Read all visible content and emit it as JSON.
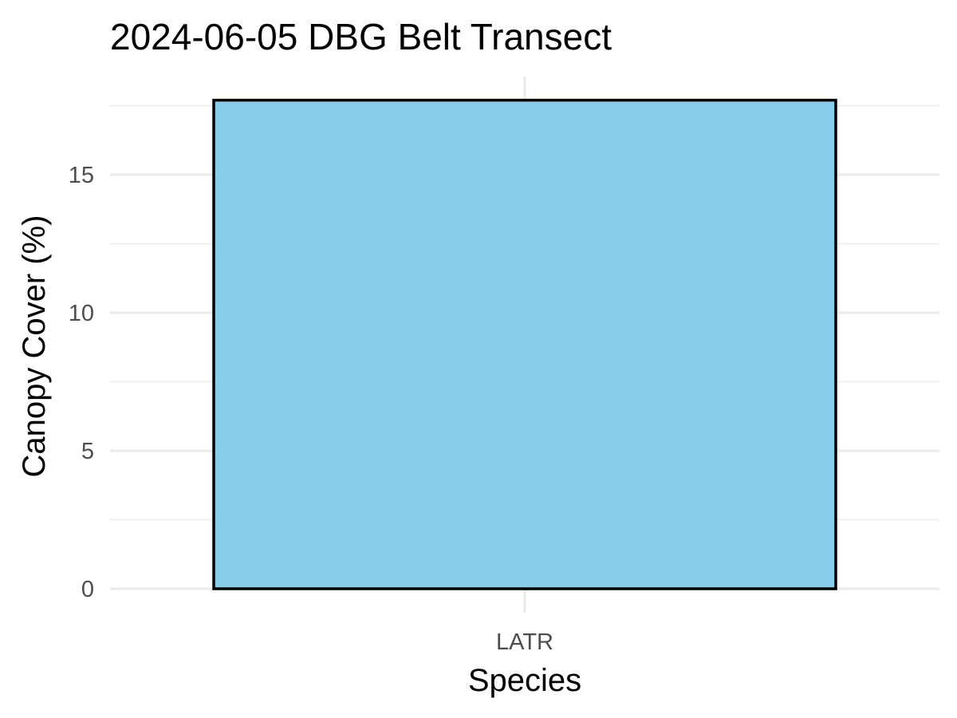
{
  "chart_data": {
    "type": "bar",
    "title": "2024-06-05 DBG Belt Transect",
    "xlabel": "Species",
    "ylabel": "Canopy Cover (%)",
    "categories": [
      "LATR"
    ],
    "values": [
      17.7
    ],
    "ylim": [
      0,
      18
    ],
    "yticks": [
      0,
      5,
      10,
      15
    ],
    "grid": true,
    "bar_fill": "#87CEEB",
    "bar_outline": "#000000"
  }
}
